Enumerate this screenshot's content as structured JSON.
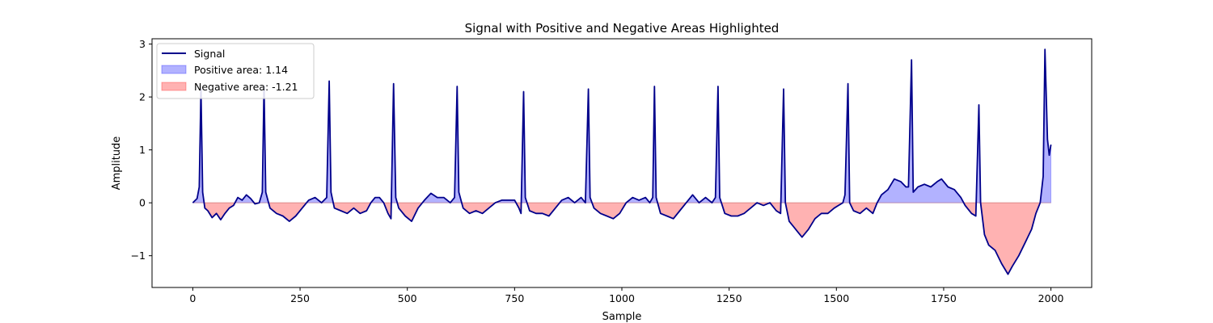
{
  "chart_data": {
    "type": "area",
    "title": "Signal with Positive and Negative Areas Highlighted",
    "xlabel": "Sample",
    "ylabel": "Amplitude",
    "xlim": [
      -95,
      2095
    ],
    "ylim": [
      -1.6,
      3.1
    ],
    "xticks": [
      0,
      250,
      500,
      750,
      1000,
      1250,
      1500,
      1750,
      2000
    ],
    "xtick_labels": [
      "0",
      "250",
      "500",
      "750",
      "1000",
      "1250",
      "1500",
      "1750",
      "2000"
    ],
    "yticks": [
      -1,
      0,
      1,
      2,
      3
    ],
    "ytick_labels": [
      "−1",
      "0",
      "1",
      "2",
      "3"
    ],
    "grid": false,
    "legend_position": "top-left",
    "series": [
      {
        "name": "Signal",
        "kind": "line",
        "color": "#00008b",
        "points": [
          [
            0,
            0.0
          ],
          [
            10,
            0.08
          ],
          [
            15,
            0.3
          ],
          [
            19,
            2.15
          ],
          [
            23,
            0.2
          ],
          [
            28,
            -0.1
          ],
          [
            35,
            -0.15
          ],
          [
            45,
            -0.28
          ],
          [
            55,
            -0.2
          ],
          [
            65,
            -0.32
          ],
          [
            75,
            -0.2
          ],
          [
            85,
            -0.1
          ],
          [
            95,
            -0.05
          ],
          [
            105,
            0.1
          ],
          [
            115,
            0.05
          ],
          [
            125,
            0.15
          ],
          [
            135,
            0.08
          ],
          [
            145,
            -0.02
          ],
          [
            155,
            0.0
          ],
          [
            162,
            0.2
          ],
          [
            166,
            2.2
          ],
          [
            170,
            0.2
          ],
          [
            180,
            -0.1
          ],
          [
            195,
            -0.2
          ],
          [
            210,
            -0.25
          ],
          [
            225,
            -0.35
          ],
          [
            240,
            -0.25
          ],
          [
            255,
            -0.1
          ],
          [
            270,
            0.05
          ],
          [
            285,
            0.1
          ],
          [
            300,
            0.0
          ],
          [
            312,
            0.1
          ],
          [
            318,
            2.3
          ],
          [
            322,
            0.2
          ],
          [
            330,
            -0.1
          ],
          [
            345,
            -0.15
          ],
          [
            360,
            -0.2
          ],
          [
            375,
            -0.1
          ],
          [
            390,
            -0.2
          ],
          [
            405,
            -0.15
          ],
          [
            415,
            0.0
          ],
          [
            425,
            0.1
          ],
          [
            435,
            0.1
          ],
          [
            445,
            0.0
          ],
          [
            455,
            -0.2
          ],
          [
            462,
            -0.3
          ],
          [
            468,
            2.25
          ],
          [
            473,
            0.1
          ],
          [
            480,
            -0.1
          ],
          [
            495,
            -0.25
          ],
          [
            510,
            -0.35
          ],
          [
            525,
            -0.1
          ],
          [
            540,
            0.05
          ],
          [
            555,
            0.18
          ],
          [
            570,
            0.1
          ],
          [
            585,
            0.1
          ],
          [
            600,
            0.0
          ],
          [
            610,
            0.1
          ],
          [
            616,
            2.2
          ],
          [
            620,
            0.2
          ],
          [
            630,
            -0.1
          ],
          [
            645,
            -0.2
          ],
          [
            660,
            -0.15
          ],
          [
            675,
            -0.2
          ],
          [
            690,
            -0.1
          ],
          [
            705,
            0.0
          ],
          [
            720,
            0.05
          ],
          [
            735,
            0.05
          ],
          [
            750,
            0.05
          ],
          [
            760,
            -0.1
          ],
          [
            765,
            -0.2
          ],
          [
            771,
            2.1
          ],
          [
            775,
            0.1
          ],
          [
            785,
            -0.15
          ],
          [
            800,
            -0.2
          ],
          [
            815,
            -0.2
          ],
          [
            830,
            -0.25
          ],
          [
            845,
            -0.1
          ],
          [
            860,
            0.05
          ],
          [
            875,
            0.1
          ],
          [
            890,
            0.0
          ],
          [
            905,
            0.1
          ],
          [
            915,
            0.0
          ],
          [
            922,
            2.15
          ],
          [
            926,
            0.1
          ],
          [
            935,
            -0.1
          ],
          [
            950,
            -0.2
          ],
          [
            965,
            -0.25
          ],
          [
            980,
            -0.3
          ],
          [
            995,
            -0.2
          ],
          [
            1010,
            0.0
          ],
          [
            1025,
            0.1
          ],
          [
            1040,
            0.05
          ],
          [
            1055,
            0.1
          ],
          [
            1065,
            0.0
          ],
          [
            1072,
            0.1
          ],
          [
            1076,
            2.2
          ],
          [
            1080,
            0.1
          ],
          [
            1090,
            -0.2
          ],
          [
            1105,
            -0.25
          ],
          [
            1120,
            -0.3
          ],
          [
            1135,
            -0.15
          ],
          [
            1150,
            0.0
          ],
          [
            1165,
            0.15
          ],
          [
            1180,
            0.0
          ],
          [
            1195,
            0.1
          ],
          [
            1210,
            0.0
          ],
          [
            1218,
            0.1
          ],
          [
            1224,
            2.2
          ],
          [
            1228,
            0.1
          ],
          [
            1240,
            -0.2
          ],
          [
            1255,
            -0.25
          ],
          [
            1270,
            -0.25
          ],
          [
            1285,
            -0.2
          ],
          [
            1300,
            -0.1
          ],
          [
            1315,
            0.0
          ],
          [
            1330,
            -0.05
          ],
          [
            1345,
            0.0
          ],
          [
            1360,
            -0.15
          ],
          [
            1370,
            -0.2
          ],
          [
            1377,
            2.15
          ],
          [
            1381,
            0.0
          ],
          [
            1390,
            -0.35
          ],
          [
            1400,
            -0.45
          ],
          [
            1410,
            -0.55
          ],
          [
            1420,
            -0.65
          ],
          [
            1435,
            -0.5
          ],
          [
            1450,
            -0.3
          ],
          [
            1465,
            -0.2
          ],
          [
            1480,
            -0.2
          ],
          [
            1495,
            -0.1
          ],
          [
            1505,
            -0.05
          ],
          [
            1515,
            0.0
          ],
          [
            1520,
            0.15
          ],
          [
            1527,
            2.25
          ],
          [
            1531,
            0.0
          ],
          [
            1540,
            -0.15
          ],
          [
            1555,
            -0.2
          ],
          [
            1570,
            -0.1
          ],
          [
            1585,
            -0.2
          ],
          [
            1595,
            0.0
          ],
          [
            1605,
            0.15
          ],
          [
            1620,
            0.25
          ],
          [
            1635,
            0.45
          ],
          [
            1650,
            0.4
          ],
          [
            1662,
            0.3
          ],
          [
            1668,
            0.3
          ],
          [
            1675,
            2.7
          ],
          [
            1679,
            0.2
          ],
          [
            1690,
            0.3
          ],
          [
            1705,
            0.35
          ],
          [
            1720,
            0.3
          ],
          [
            1735,
            0.4
          ],
          [
            1745,
            0.45
          ],
          [
            1760,
            0.3
          ],
          [
            1775,
            0.25
          ],
          [
            1790,
            0.1
          ],
          [
            1800,
            -0.05
          ],
          [
            1815,
            -0.2
          ],
          [
            1825,
            -0.25
          ],
          [
            1832,
            1.85
          ],
          [
            1836,
            0.0
          ],
          [
            1845,
            -0.6
          ],
          [
            1855,
            -0.8
          ],
          [
            1870,
            -0.9
          ],
          [
            1885,
            -1.15
          ],
          [
            1900,
            -1.35
          ],
          [
            1910,
            -1.2
          ],
          [
            1925,
            -1.0
          ],
          [
            1940,
            -0.75
          ],
          [
            1955,
            -0.5
          ],
          [
            1965,
            -0.2
          ],
          [
            1975,
            0.0
          ],
          [
            1982,
            0.5
          ],
          [
            1986,
            2.9
          ],
          [
            1992,
            1.2
          ],
          [
            1996,
            0.9
          ],
          [
            2000,
            1.1
          ]
        ]
      },
      {
        "name": "Positive area: 1.14",
        "kind": "fill_positive",
        "color": "#0000ff",
        "alpha": 0.3
      },
      {
        "name": "Negative area: -1.21",
        "kind": "fill_negative",
        "color": "#ff0000",
        "alpha": 0.3
      }
    ]
  }
}
